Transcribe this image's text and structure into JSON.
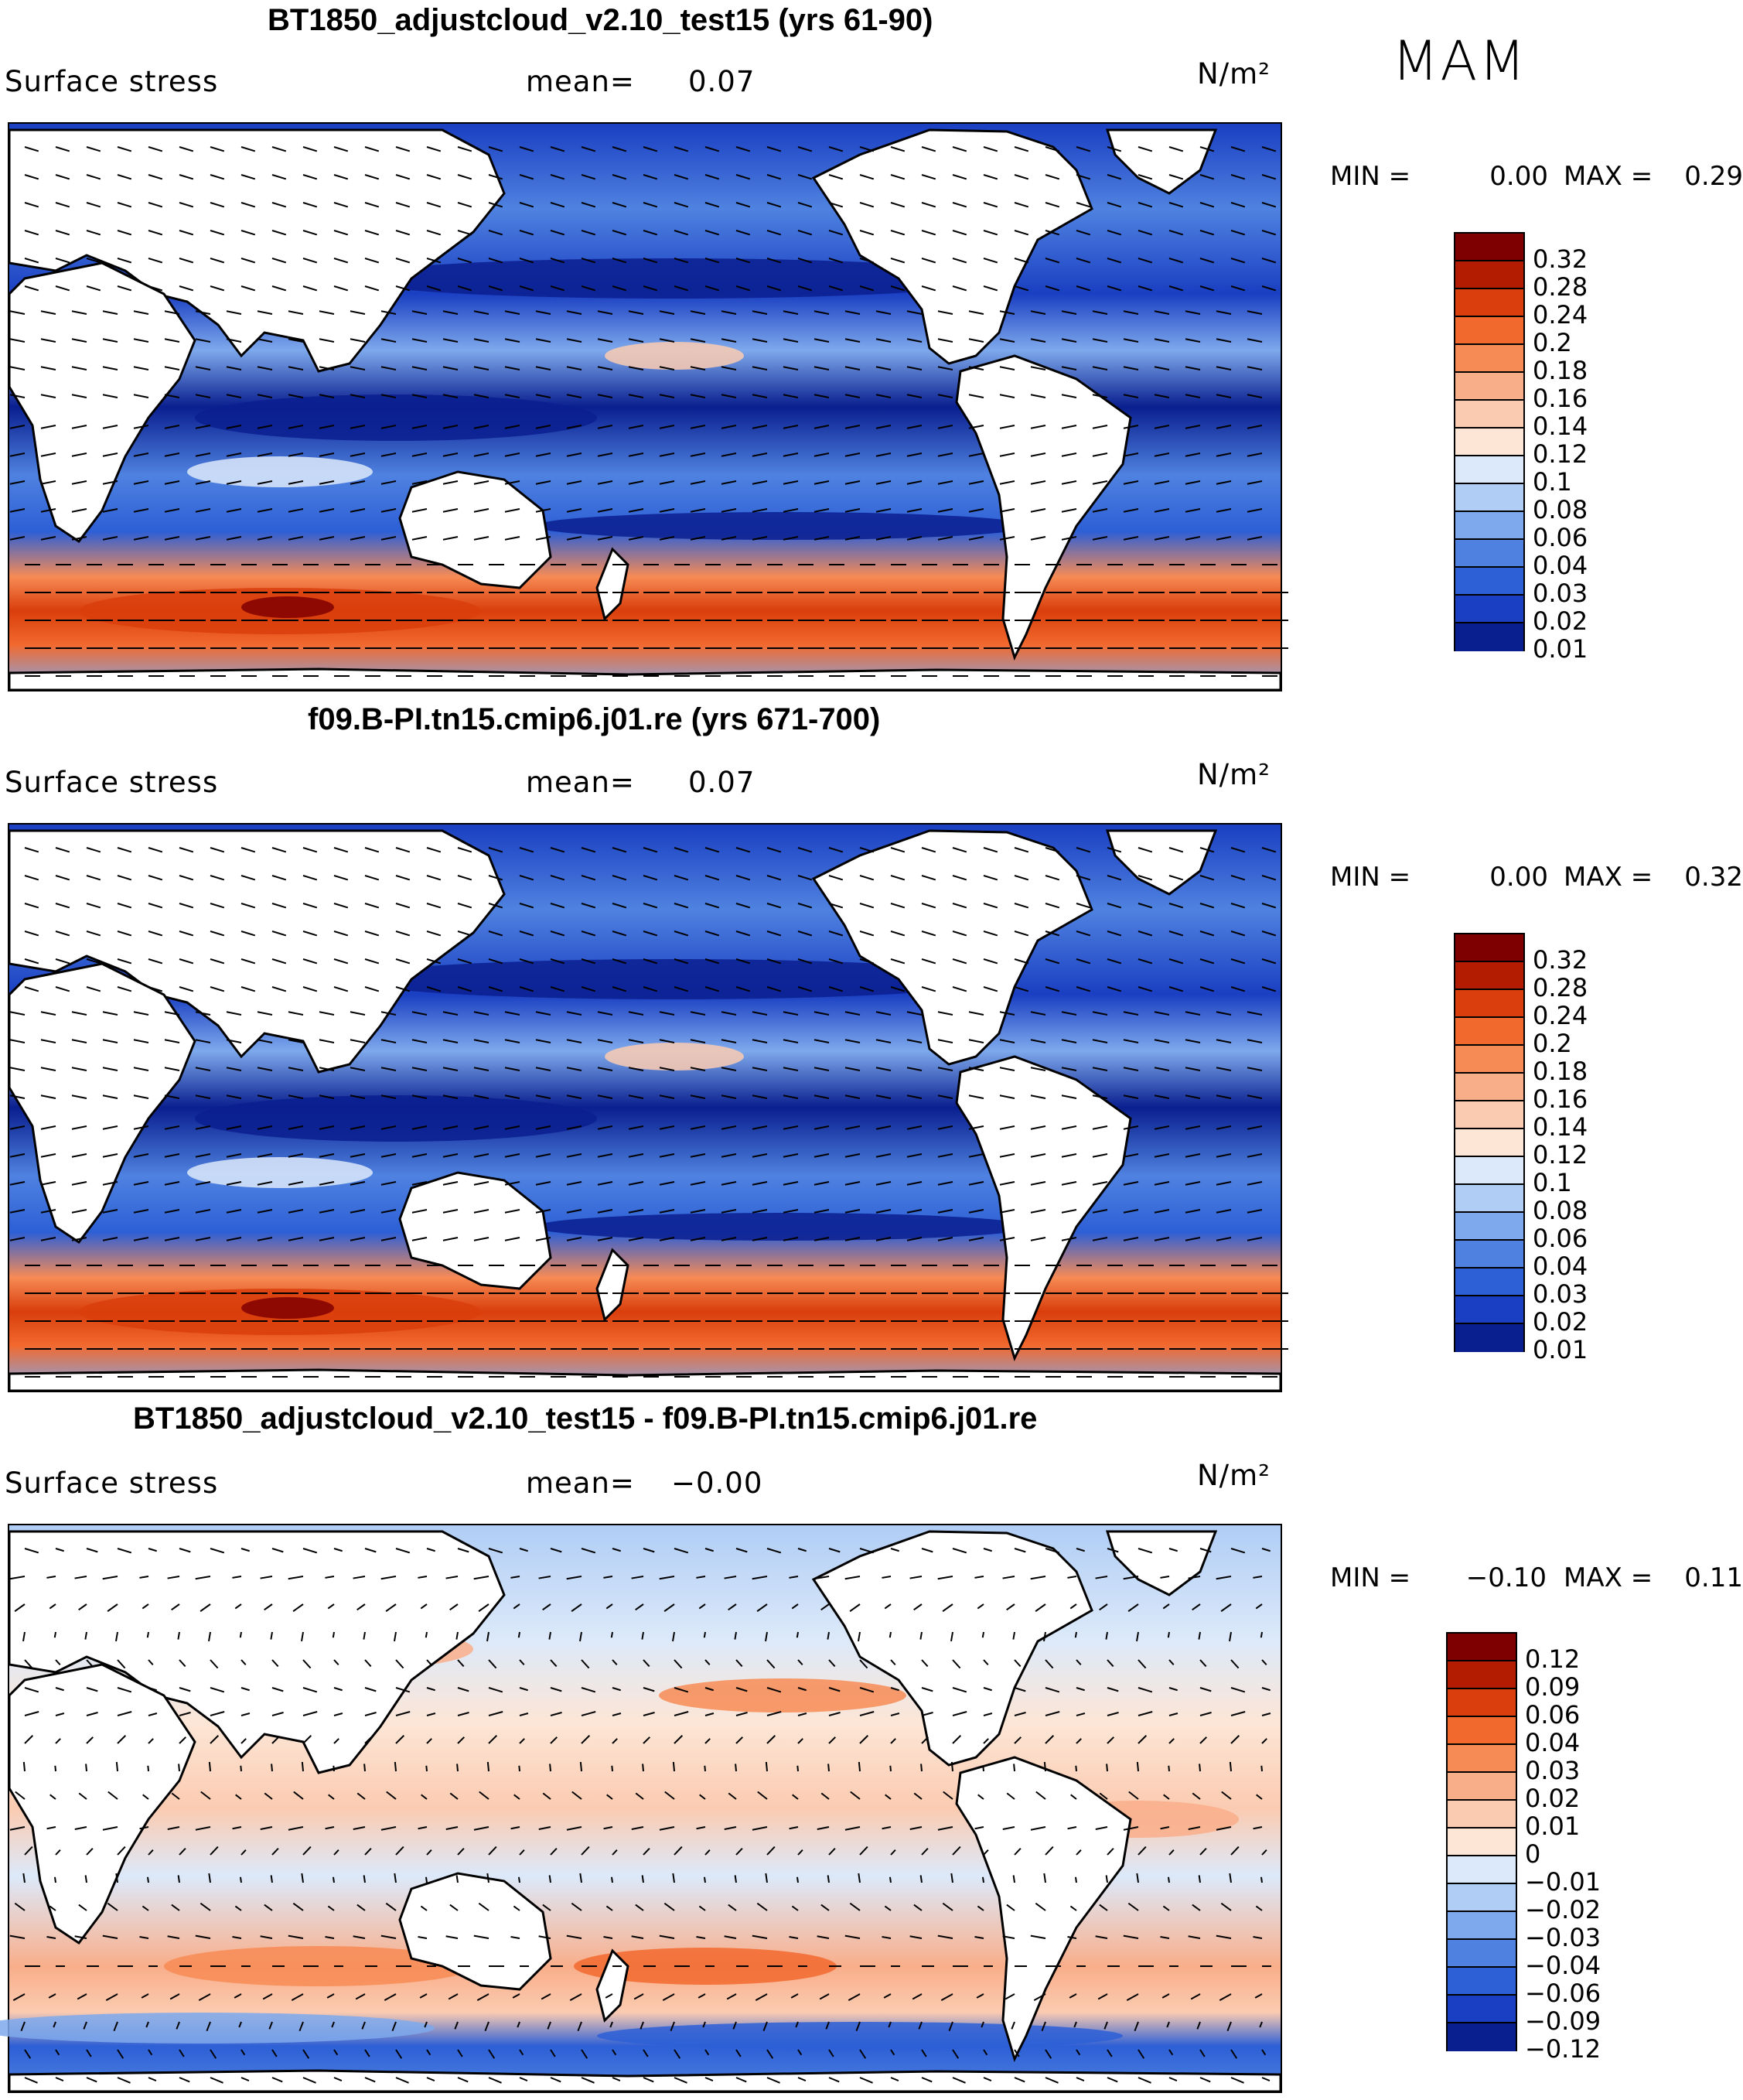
{
  "season": "MAM",
  "panels": [
    {
      "title": "BT1850_adjustcloud_v2.10_test15 (yrs 61-90)",
      "variable": "Surface stress",
      "mean_label": "mean=",
      "mean_value": "0.07",
      "units": "N/m²",
      "min_label": "MIN =",
      "min_value": "0.00",
      "max_label": "MAX =",
      "max_value": "0.29",
      "colorbar_labels": [
        "0.32",
        "0.28",
        "0.24",
        "0.2",
        "0.18",
        "0.16",
        "0.14",
        "0.12",
        "0.1",
        "0.08",
        "0.06",
        "0.04",
        "0.03",
        "0.02",
        "0.01"
      ],
      "colorbar_colors": [
        "#7f0000",
        "#b31c00",
        "#d93e0c",
        "#f2692e",
        "#f78b55",
        "#f9ae8a",
        "#fbcbb1",
        "#fde6d6",
        "#dce9fa",
        "#b0cdf5",
        "#7ea9ec",
        "#4f82e0",
        "#2d5fd6",
        "#1a3fc2",
        "#0a1f8f"
      ]
    },
    {
      "title": "f09.B-PI.tn15.cmip6.j01.re (yrs 671-700)",
      "variable": "Surface stress",
      "mean_label": "mean=",
      "mean_value": "0.07",
      "units": "N/m²",
      "min_label": "MIN =",
      "min_value": "0.00",
      "max_label": "MAX =",
      "max_value": "0.32",
      "colorbar_labels": [
        "0.32",
        "0.28",
        "0.24",
        "0.2",
        "0.18",
        "0.16",
        "0.14",
        "0.12",
        "0.1",
        "0.08",
        "0.06",
        "0.04",
        "0.03",
        "0.02",
        "0.01"
      ],
      "colorbar_colors": [
        "#7f0000",
        "#b31c00",
        "#d93e0c",
        "#f2692e",
        "#f78b55",
        "#f9ae8a",
        "#fbcbb1",
        "#fde6d6",
        "#dce9fa",
        "#b0cdf5",
        "#7ea9ec",
        "#4f82e0",
        "#2d5fd6",
        "#1a3fc2",
        "#0a1f8f"
      ]
    },
    {
      "title": "BT1850_adjustcloud_v2.10_test15 - f09.B-PI.tn15.cmip6.j01.re",
      "variable": "Surface stress",
      "mean_label": "mean=",
      "mean_value": "−0.00",
      "units": "N/m²",
      "min_label": "MIN =",
      "min_value": "−0.10",
      "max_label": "MAX =",
      "max_value": "0.11",
      "colorbar_labels": [
        "0.12",
        "0.09",
        "0.06",
        "0.04",
        "0.03",
        "0.02",
        "0.01",
        "0",
        "−0.01",
        "−0.02",
        "−0.03",
        "−0.04",
        "−0.06",
        "−0.09",
        "−0.12"
      ],
      "colorbar_colors": [
        "#7f0000",
        "#b31c00",
        "#d93e0c",
        "#f2692e",
        "#f78b55",
        "#f9ae8a",
        "#fbcbb1",
        "#fde6d6",
        "#dce9fa",
        "#b0cdf5",
        "#7ea9ec",
        "#4f82e0",
        "#2d5fd6",
        "#1a3fc2",
        "#0a1f8f"
      ]
    }
  ]
}
